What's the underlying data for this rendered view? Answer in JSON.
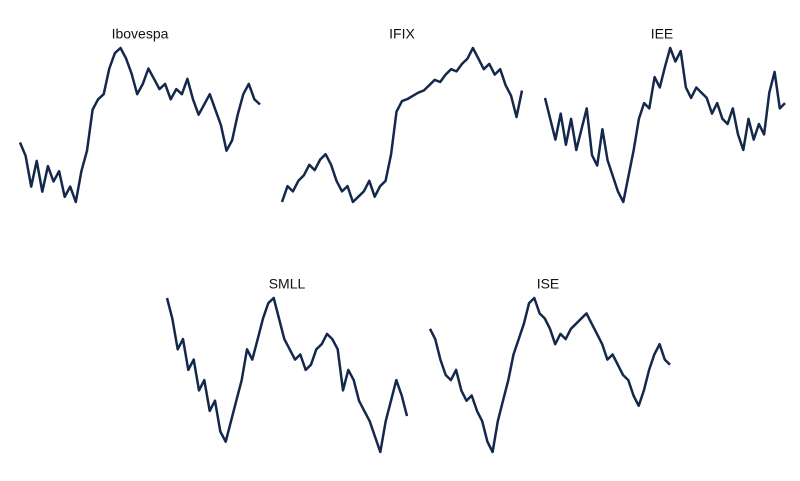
{
  "chart_data": [
    {
      "type": "line",
      "title": "Ibovespa",
      "color": "#14284b",
      "values": [
        68,
        55,
        25,
        50,
        20,
        45,
        30,
        40,
        15,
        25,
        10,
        40,
        60,
        100,
        110,
        115,
        140,
        155,
        160,
        150,
        135,
        115,
        125,
        140,
        130,
        120,
        125,
        110,
        120,
        115,
        130,
        110,
        95,
        105,
        115,
        100,
        85,
        60,
        70,
        95,
        115,
        125,
        110,
        105
      ]
    },
    {
      "type": "line",
      "title": "IFIX",
      "color": "#14284b",
      "values": [
        15,
        30,
        25,
        35,
        40,
        50,
        45,
        55,
        60,
        50,
        35,
        25,
        30,
        15,
        20,
        25,
        35,
        20,
        30,
        35,
        60,
        100,
        110,
        112,
        115,
        118,
        120,
        125,
        130,
        128,
        135,
        140,
        138,
        145,
        150,
        160,
        150,
        140,
        145,
        135,
        140,
        125,
        115,
        95,
        120
      ]
    },
    {
      "type": "line",
      "title": "IEE",
      "color": "#14284b",
      "values": [
        110,
        90,
        70,
        95,
        65,
        90,
        60,
        80,
        100,
        55,
        45,
        80,
        50,
        35,
        20,
        10,
        35,
        60,
        90,
        105,
        100,
        130,
        120,
        140,
        158,
        145,
        155,
        120,
        110,
        120,
        115,
        110,
        95,
        105,
        90,
        85,
        100,
        75,
        60,
        90,
        70,
        85,
        75,
        115,
        135,
        100,
        105
      ]
    },
    {
      "type": "line",
      "title": "SMLL",
      "color": "#14284b",
      "values": [
        160,
        140,
        110,
        120,
        90,
        100,
        70,
        80,
        50,
        60,
        30,
        20,
        40,
        60,
        80,
        110,
        100,
        120,
        140,
        155,
        160,
        140,
        120,
        110,
        100,
        105,
        90,
        95,
        110,
        115,
        125,
        120,
        110,
        70,
        90,
        80,
        60,
        50,
        40,
        25,
        10,
        40,
        60,
        80,
        65,
        45
      ]
    },
    {
      "type": "line",
      "title": "ISE",
      "color": "#14284b",
      "values": [
        130,
        120,
        100,
        85,
        80,
        90,
        70,
        60,
        65,
        50,
        40,
        20,
        10,
        40,
        60,
        80,
        105,
        120,
        135,
        155,
        160,
        145,
        140,
        130,
        115,
        125,
        120,
        130,
        135,
        140,
        145,
        135,
        125,
        115,
        100,
        105,
        95,
        85,
        80,
        65,
        55,
        70,
        90,
        105,
        115,
        100,
        95
      ]
    }
  ]
}
